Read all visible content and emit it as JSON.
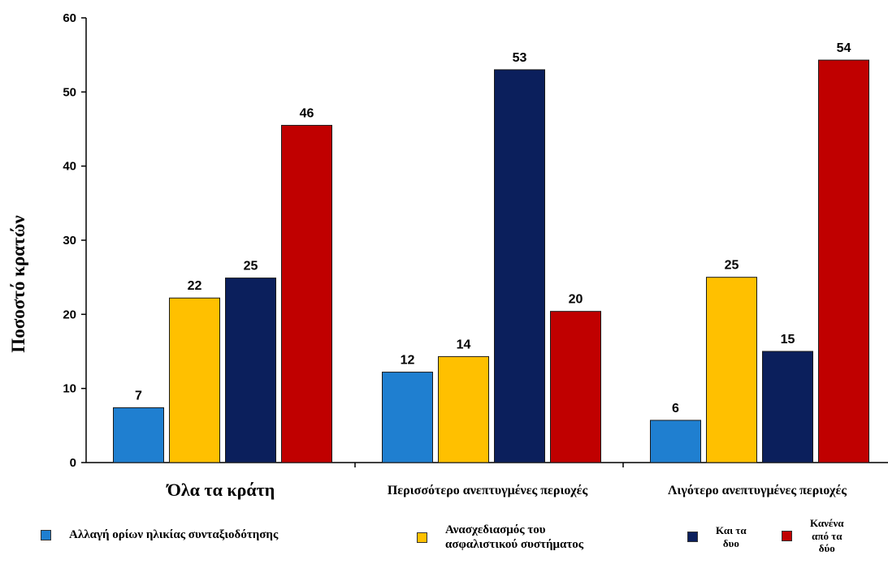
{
  "chart_data": {
    "type": "bar",
    "title": "",
    "ylabel": "Ποσοστό κρατών",
    "xlabel": "",
    "ylim": [
      0,
      60
    ],
    "yticks": [
      0,
      10,
      20,
      30,
      40,
      50,
      60
    ],
    "grid": false,
    "legend_position": "bottom",
    "categories": [
      "Όλα τα κράτη",
      "Περισσότερο ανεπτυγμένες περιοχές",
      "Λιγότερο ανεπτυγμένες περιοχές"
    ],
    "series": [
      {
        "name": "Αλλαγή ορίων ηλικίας συνταξιοδότησης",
        "color": "#1f7fd0",
        "values": [
          7.4,
          12.2,
          5.7
        ],
        "labels": [
          "7",
          "12",
          "6"
        ]
      },
      {
        "name": "Ανασχεδιασμός του ασφαλιστικού συστήματος",
        "color": "#ffc000",
        "values": [
          22.2,
          14.3,
          25.0
        ],
        "labels": [
          "22",
          "14",
          "25"
        ]
      },
      {
        "name": "Και τα δυο",
        "color": "#0b1f5c",
        "values": [
          24.9,
          53.0,
          15.0
        ],
        "labels": [
          "25",
          "53",
          "15"
        ]
      },
      {
        "name": "Κανένα από τα δύο",
        "color": "#c00000",
        "values": [
          45.5,
          20.4,
          54.3
        ],
        "labels": [
          "46",
          "20",
          "54"
        ]
      }
    ]
  },
  "legend": {
    "items": [
      {
        "lines": [
          "Αλλαγή ορίων ηλικίας συνταξιοδότησης"
        ]
      },
      {
        "lines": [
          "Ανασχεδιασμός του",
          "ασφαλιστικού συστήματος"
        ]
      },
      {
        "lines": [
          "Και τα",
          "δυο"
        ]
      },
      {
        "lines": [
          "Κανένα",
          "από τα",
          "δύο"
        ]
      }
    ]
  }
}
